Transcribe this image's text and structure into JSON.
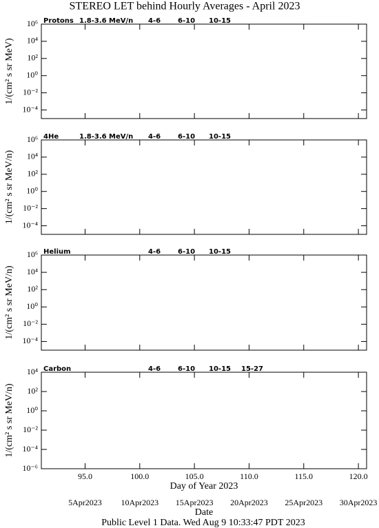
{
  "title": "STEREO LET behind Hourly Averages - April 2023",
  "footer": "Public Level 1 Data. Wed Aug  9 10:33:47 PDT 2023",
  "chart_data": [
    {
      "type": "line",
      "title": "Protons",
      "ylabel": "1/(cm² s sr MeV)",
      "log_y": true,
      "x": [],
      "series": [
        {
          "name": "1.8-3.6 MeV/n",
          "color": "#000000",
          "values": []
        },
        {
          "name": "4-6",
          "color": "#b00000",
          "values": []
        },
        {
          "name": "6-10",
          "color": "#ff0000",
          "values": []
        },
        {
          "name": "10-15",
          "color": "#808080",
          "values": []
        }
      ],
      "xlim": [
        91,
        120.75
      ],
      "xticks": [
        95,
        100,
        105,
        110,
        115,
        120
      ],
      "ylim": [
        1e-05,
        1000000
      ],
      "yticks": [
        {
          "value": 1000000,
          "label": "10⁶"
        },
        {
          "value": 10000,
          "label": "10⁴"
        },
        {
          "value": 100,
          "label": "10²"
        },
        {
          "value": 1,
          "label": "10⁰"
        },
        {
          "value": 0.01,
          "label": "10⁻²"
        },
        {
          "value": 0.0001,
          "label": "10⁻⁴"
        }
      ]
    },
    {
      "type": "line",
      "title": "4He",
      "ylabel": "1/(cm² s sr MeV/n)",
      "log_y": true,
      "x": [],
      "series": [
        {
          "name": "1.8-3.6 MeV/n",
          "color": "#000000",
          "values": []
        },
        {
          "name": "4-6",
          "color": "#b00000",
          "values": []
        },
        {
          "name": "6-10",
          "color": "#ff0000",
          "values": []
        },
        {
          "name": "10-15",
          "color": "#808080",
          "values": []
        }
      ],
      "xlim": [
        91,
        120.75
      ],
      "xticks": [
        95,
        100,
        105,
        110,
        115,
        120
      ],
      "ylim": [
        1e-05,
        1000000
      ],
      "yticks": [
        {
          "value": 1000000,
          "label": "10⁶"
        },
        {
          "value": 10000,
          "label": "10⁴"
        },
        {
          "value": 100,
          "label": "10²"
        },
        {
          "value": 1,
          "label": "10⁰"
        },
        {
          "value": 0.01,
          "label": "10⁻²"
        },
        {
          "value": 0.0001,
          "label": "10⁻⁴"
        }
      ]
    },
    {
      "type": "line",
      "title": "Helium",
      "ylabel": "1/(cm² s sr MeV/n)",
      "log_y": true,
      "x": [],
      "series": [
        {
          "name": "4-6",
          "color": "#b00000",
          "values": []
        },
        {
          "name": "6-10",
          "color": "#ff0000",
          "values": []
        },
        {
          "name": "10-15",
          "color": "#808080",
          "values": []
        }
      ],
      "xlim": [
        91,
        120.75
      ],
      "xticks": [
        95,
        100,
        105,
        110,
        115,
        120
      ],
      "ylim": [
        1e-05,
        1000000
      ],
      "yticks": [
        {
          "value": 1000000,
          "label": "10⁶"
        },
        {
          "value": 10000,
          "label": "10⁴"
        },
        {
          "value": 100,
          "label": "10²"
        },
        {
          "value": 1,
          "label": "10⁰"
        },
        {
          "value": 0.01,
          "label": "10⁻²"
        },
        {
          "value": 0.0001,
          "label": "10⁻⁴"
        }
      ]
    },
    {
      "type": "line",
      "title": "Carbon",
      "ylabel": "1/(cm² s sr MeV/n)",
      "log_y": true,
      "xlabel": "Day of Year 2023",
      "x2label": "Date",
      "x": [],
      "series": [
        {
          "name": "4-6",
          "color": "#b00000",
          "values": []
        },
        {
          "name": "6-10",
          "color": "#ff0000",
          "values": []
        },
        {
          "name": "10-15",
          "color": "#808080",
          "values": []
        },
        {
          "name": "15-27",
          "color": "#0000ff",
          "values": []
        }
      ],
      "xlim": [
        91,
        120.75
      ],
      "xticks": [
        {
          "value": 95,
          "label": "95.0"
        },
        {
          "value": 100,
          "label": "100.0"
        },
        {
          "value": 105,
          "label": "105.0"
        },
        {
          "value": 110,
          "label": "110.0"
        },
        {
          "value": 115,
          "label": "115.0"
        },
        {
          "value": 120,
          "label": "120.0"
        }
      ],
      "x2ticks": [
        {
          "value": 95,
          "label": "5Apr2023"
        },
        {
          "value": 100,
          "label": "10Apr2023"
        },
        {
          "value": 105,
          "label": "15Apr2023"
        },
        {
          "value": 110,
          "label": "20Apr2023"
        },
        {
          "value": 115,
          "label": "25Apr2023"
        },
        {
          "value": 120,
          "label": "30Apr2023"
        }
      ],
      "ylim": [
        1e-06,
        10000
      ],
      "yticks": [
        {
          "value": 10000,
          "label": "10⁴"
        },
        {
          "value": 100,
          "label": "10²"
        },
        {
          "value": 1,
          "label": "10⁰"
        },
        {
          "value": 0.01,
          "label": "10⁻²"
        },
        {
          "value": 0.0001,
          "label": "10⁻⁴"
        },
        {
          "value": 1e-06,
          "label": "10⁻⁶"
        }
      ]
    }
  ]
}
